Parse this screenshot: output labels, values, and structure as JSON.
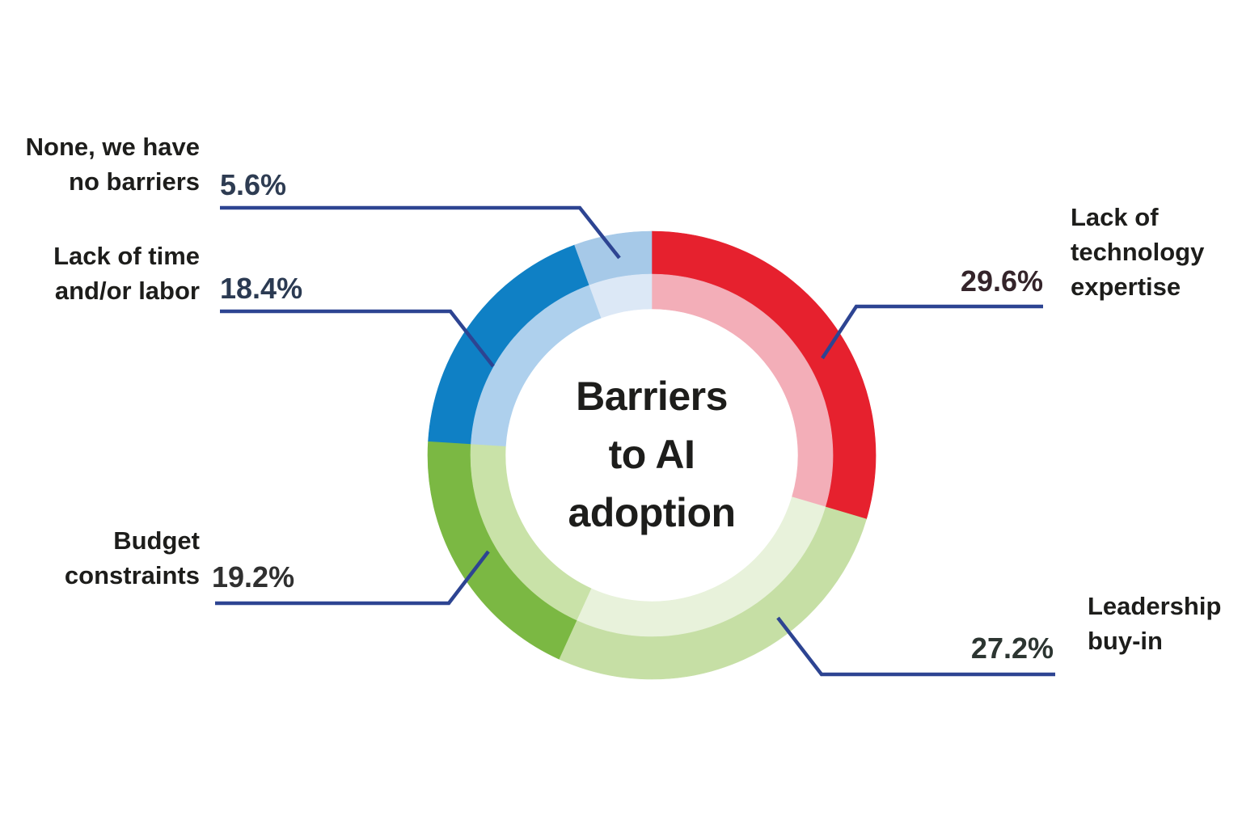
{
  "title": {
    "lines": [
      "Barriers",
      "to AI",
      "adoption"
    ]
  },
  "chart_data": {
    "type": "pie",
    "subtype": "donut-double-ring",
    "title": "Barriers to AI adoption",
    "units": "%",
    "total": 100,
    "start_angle_deg": 0,
    "direction": "clockwise",
    "legend": "none",
    "label_color": "#1d1d1b",
    "leader_line_color": "#2d4492",
    "segments": [
      {
        "id": "tech",
        "label": "Lack of technology expertise",
        "label_lines": [
          "Lack of",
          "technology",
          "expertise"
        ],
        "value": 29.6,
        "value_text": "29.6%",
        "color": "#e6212e",
        "inner_color": "#f3aeb8",
        "value_color": "#34242a"
      },
      {
        "id": "leadership",
        "label": "Leadership buy-in",
        "label_lines": [
          "Leadership",
          "buy-in"
        ],
        "value": 27.2,
        "value_text": "27.2%",
        "color": "#c6dfa5",
        "inner_color": "#e8f2db",
        "value_color": "#2c3531"
      },
      {
        "id": "budget",
        "label": "Budget constraints",
        "label_lines": [
          "Budget",
          "constraints"
        ],
        "value": 19.2,
        "value_text": "19.2%",
        "color": "#7bb843",
        "inner_color": "#c9e2a8",
        "value_color": "#303030"
      },
      {
        "id": "time",
        "label": "Lack of time and/or labor",
        "label_lines": [
          "Lack of time",
          "and/or labor"
        ],
        "value": 18.4,
        "value_text": "18.4%",
        "color": "#0f80c5",
        "inner_color": "#aed0ed",
        "value_color": "#2b3a52"
      },
      {
        "id": "none",
        "label": "None, we have no barriers",
        "label_lines": [
          "None, we have",
          "no barriers"
        ],
        "value": 5.6,
        "value_text": "5.6%",
        "color": "#a6c9e8",
        "inner_color": "#dce8f6",
        "value_color": "#2e3c52"
      }
    ]
  }
}
